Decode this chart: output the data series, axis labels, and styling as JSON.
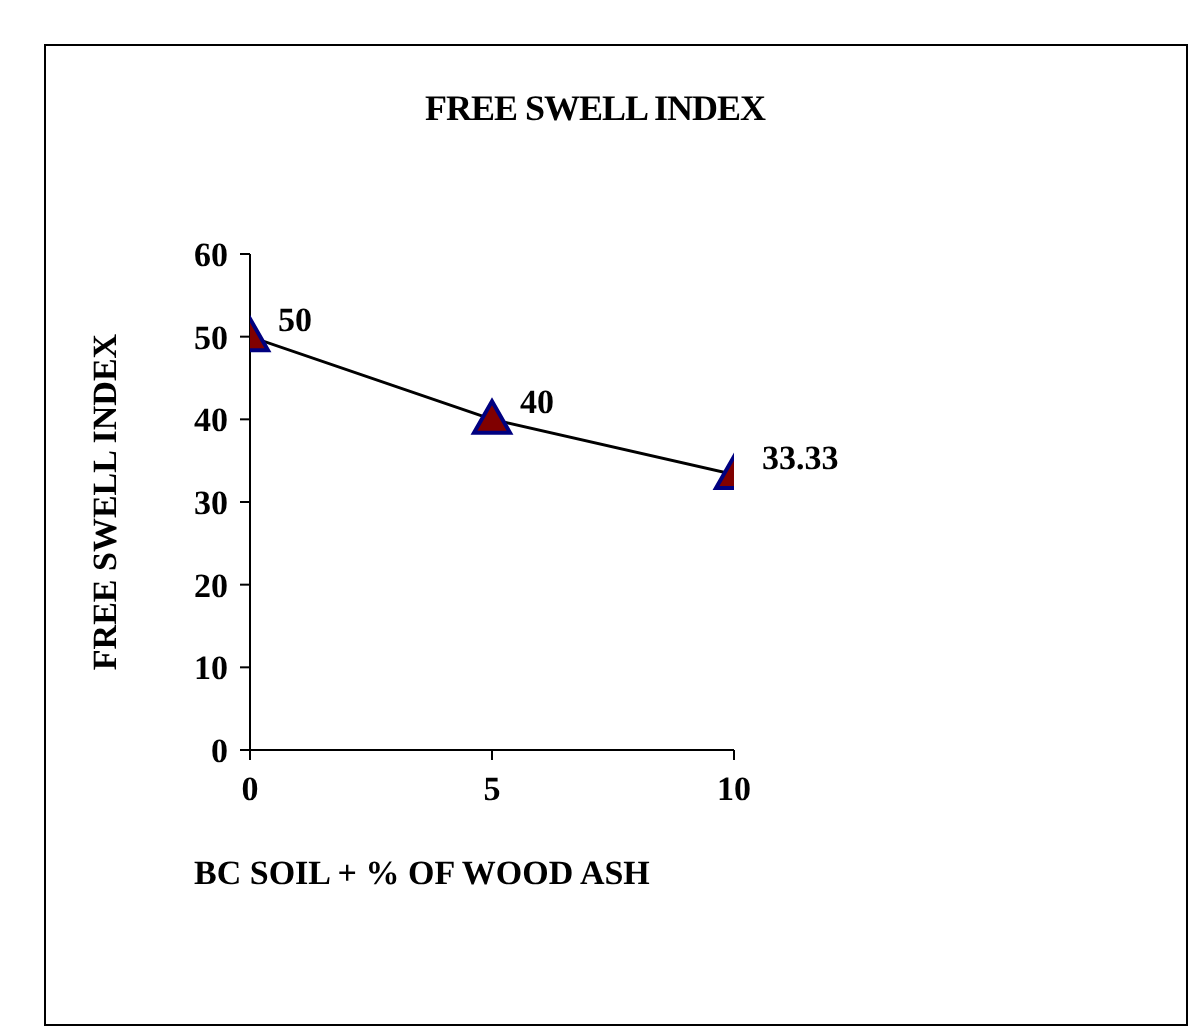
{
  "chart_data": {
    "type": "line",
    "title": "FREE SWELL INDEX",
    "xlabel": "BC SOIL + % OF WOOD ASH",
    "ylabel": "FREE SWELL INDEX",
    "x": [
      0,
      5,
      10
    ],
    "series": [
      {
        "color": "#000000",
        "values": [
          50,
          40,
          33.33
        ]
      }
    ],
    "marker": "triangle",
    "data_labels": true,
    "grid": false,
    "legend": false,
    "xlim": [
      0,
      10
    ],
    "xticks": [
      0,
      5,
      10
    ],
    "ylim": [
      0,
      60
    ],
    "yticks": [
      0,
      10,
      20,
      30,
      40,
      50,
      60
    ]
  }
}
